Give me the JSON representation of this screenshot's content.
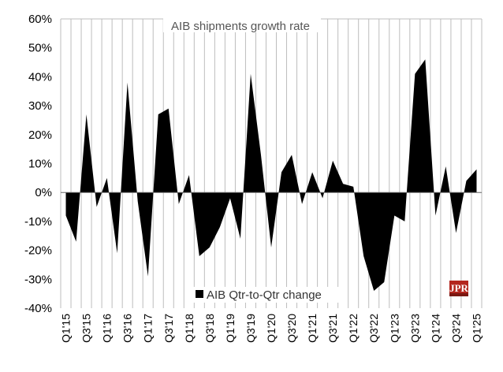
{
  "chart_data": {
    "type": "area",
    "title": "AIB shipments growth rate",
    "xlabel": "",
    "ylabel": "",
    "ylim": [
      -0.4,
      0.6
    ],
    "y_ticks": [
      "60%",
      "50%",
      "40%",
      "30%",
      "20%",
      "10%",
      "0%",
      "-10%",
      "-20%",
      "-30%",
      "-40%"
    ],
    "x_tick_labels": [
      "Q1'15",
      "Q3'15",
      "Q1'16",
      "Q3'16",
      "Q1'17",
      "Q3'17",
      "Q1'18",
      "Q3'18",
      "Q1'19",
      "Q3'19",
      "Q1'20",
      "Q3'20",
      "Q1'21",
      "Q3'21",
      "Q1'22",
      "Q3'22",
      "Q1'23",
      "Q3'23",
      "Q1'24",
      "Q3'24",
      "Q1'25"
    ],
    "categories": [
      "Q1'15",
      "Q2'15",
      "Q3'15",
      "Q4'15",
      "Q1'16",
      "Q2'16",
      "Q3'16",
      "Q4'16",
      "Q1'17",
      "Q2'17",
      "Q3'17",
      "Q4'17",
      "Q1'18",
      "Q2'18",
      "Q3'18",
      "Q4'18",
      "Q1'19",
      "Q2'19",
      "Q3'19",
      "Q4'19",
      "Q1'20",
      "Q2'20",
      "Q3'20",
      "Q4'20",
      "Q1'21",
      "Q2'21",
      "Q3'21",
      "Q4'21",
      "Q1'22",
      "Q2'22",
      "Q3'22",
      "Q4'22",
      "Q1'23",
      "Q2'23",
      "Q3'23",
      "Q4'23",
      "Q1'24",
      "Q2'24",
      "Q3'24",
      "Q4'24",
      "Q1'25"
    ],
    "series": [
      {
        "name": "AIB Qtr-to-Qtr change",
        "color": "#000000",
        "values": [
          -0.08,
          -0.17,
          0.27,
          -0.05,
          0.05,
          -0.21,
          0.38,
          -0.03,
          -0.29,
          0.27,
          0.29,
          -0.04,
          0.06,
          -0.22,
          -0.19,
          -0.12,
          -0.02,
          -0.16,
          0.41,
          0.13,
          -0.19,
          0.07,
          0.13,
          -0.04,
          0.07,
          -0.02,
          0.11,
          0.03,
          0.02,
          -0.22,
          -0.34,
          -0.31,
          -0.08,
          -0.1,
          0.41,
          0.46,
          -0.08,
          0.09,
          -0.14,
          0.04,
          0.08
        ]
      }
    ],
    "grid": "vertical",
    "legend": "bottom-center",
    "logo": "JPR"
  }
}
